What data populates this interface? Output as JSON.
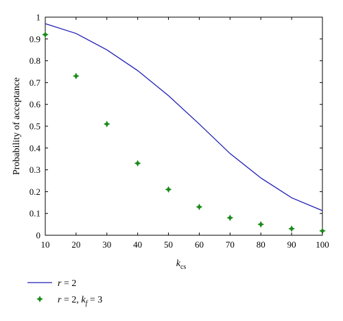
{
  "chart_data": {
    "type": "line",
    "title": "",
    "xlabel_main": "k",
    "xlabel_sub": "cs",
    "ylabel": "Probability of acceptance",
    "xlim": [
      10,
      100
    ],
    "ylim": [
      0,
      1
    ],
    "xticks": [
      10,
      20,
      30,
      40,
      50,
      60,
      70,
      80,
      90,
      100
    ],
    "yticks": [
      0,
      0.1,
      0.2,
      0.3,
      0.4,
      0.5,
      0.6,
      0.7,
      0.8,
      0.9,
      1
    ],
    "ytick_labels": [
      "0",
      "0.1",
      "0.2",
      "0.3",
      "0.4",
      "0.5",
      "0.6",
      "0.7",
      "0.8",
      "0.9",
      "1"
    ],
    "grid": false,
    "legend_position": "bottom-left-outside",
    "x": [
      10,
      20,
      30,
      40,
      50,
      60,
      70,
      80,
      90,
      100
    ],
    "series": [
      {
        "name": "r = 2",
        "legend_parts": [
          "r",
          " = 2"
        ],
        "kind": "line",
        "color": "#1f1fb4",
        "values": [
          0.97,
          0.925,
          0.85,
          0.755,
          0.64,
          0.51,
          0.375,
          0.263,
          0.172,
          0.113
        ]
      },
      {
        "name": "r = 2, k_f = 3",
        "legend_parts": [
          "r",
          " = 2, ",
          "k",
          "f",
          " = 3"
        ],
        "kind": "scatter",
        "color": "#1a8a1a",
        "values": [
          0.92,
          0.73,
          0.51,
          0.33,
          0.21,
          0.13,
          0.08,
          0.05,
          0.03,
          0.02
        ]
      }
    ]
  }
}
